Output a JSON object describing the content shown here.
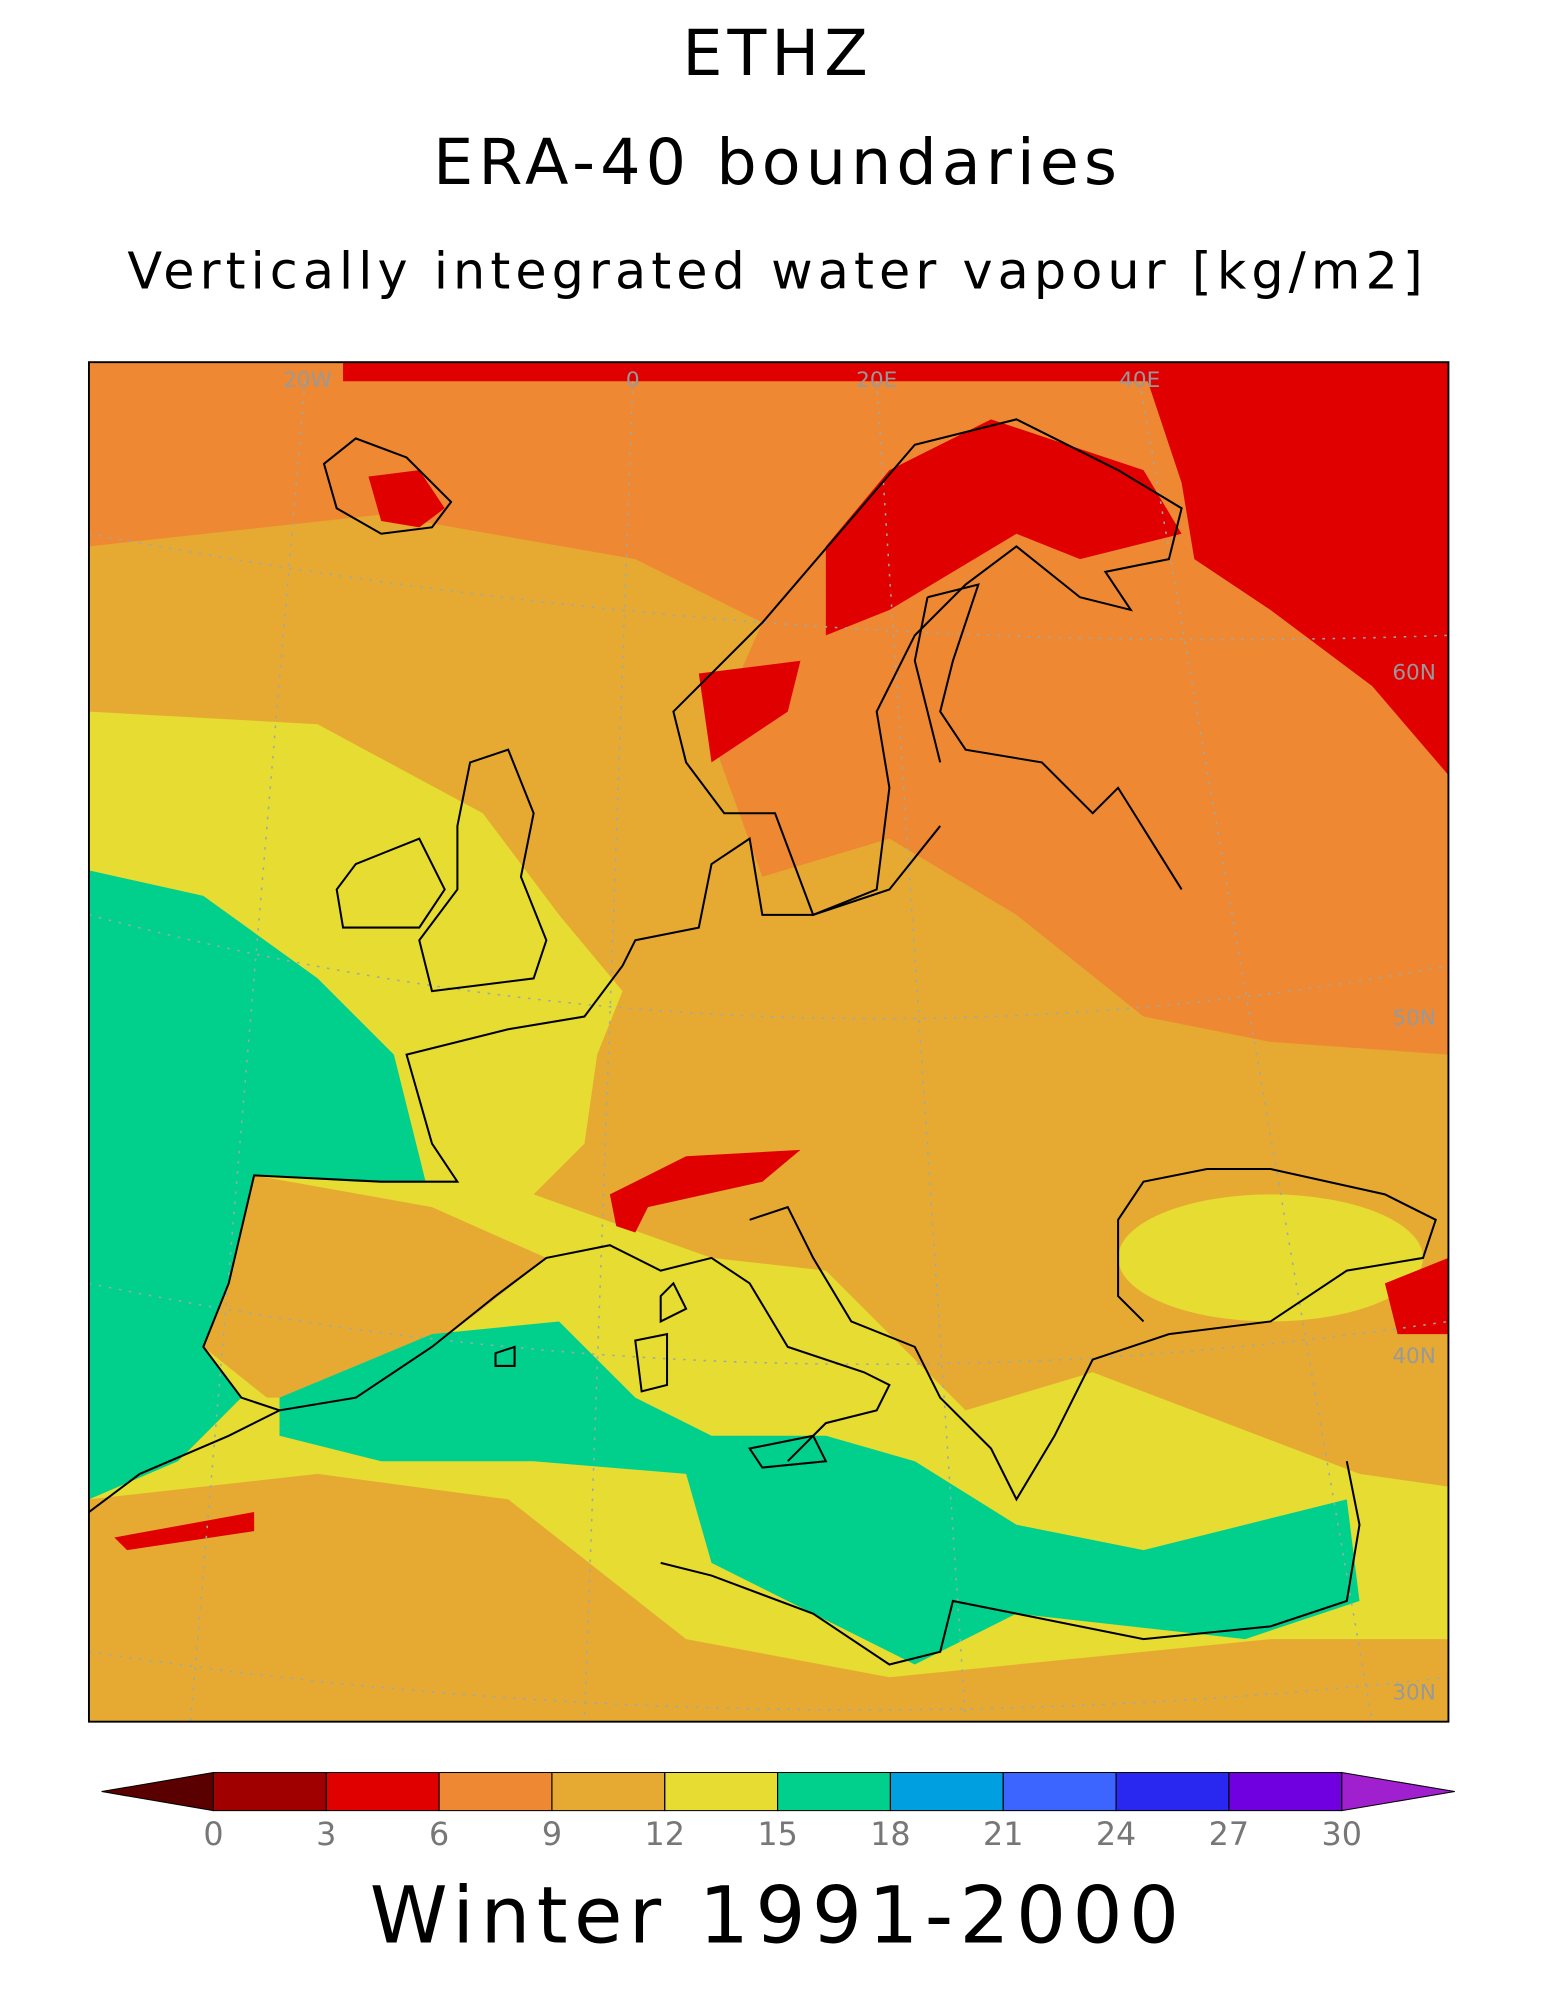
{
  "title": "ETHZ",
  "subtitle": "ERA-40 boundaries",
  "variable": "Vertically integrated water vapour [kg/m2]",
  "map": {
    "longitude_labels": [
      "20W",
      "0",
      "20E",
      "40E"
    ],
    "latitude_labels": [
      "60N",
      "50N",
      "40N",
      "30N"
    ]
  },
  "colorbar": {
    "ticks": [
      0,
      3,
      6,
      9,
      12,
      15,
      18,
      21,
      24,
      27,
      30
    ],
    "colors": [
      "#5a0000",
      "#a00000",
      "#e00000",
      "#ee8833",
      "#e6aa33",
      "#e6dc32",
      "#00d08c",
      "#00a0e0",
      "#3c64ff",
      "#2828f0",
      "#7000e0",
      "#a020d0"
    ]
  },
  "footer": "Winter 1991-2000"
}
